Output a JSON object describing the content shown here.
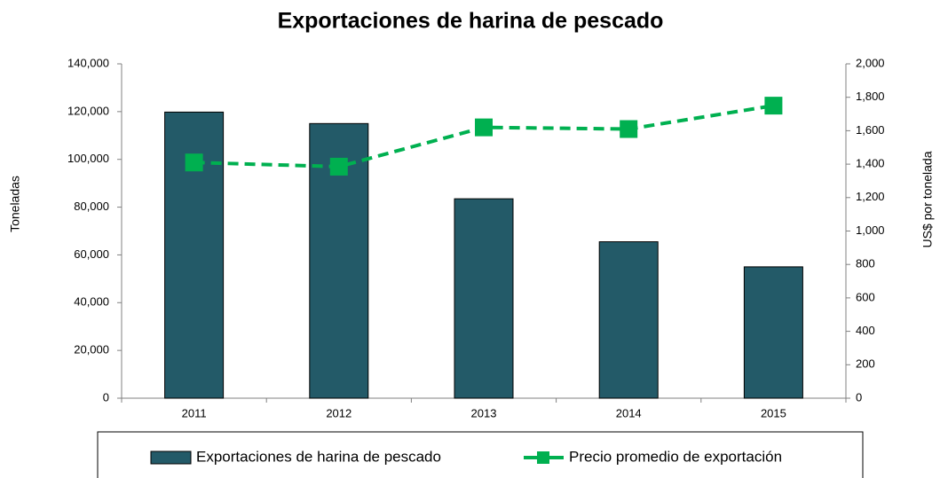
{
  "chart_data": {
    "type": "bar",
    "title": "Exportaciones de harina de pescado",
    "y_label": "Toneladas",
    "y2_label": "US$ por tonelada",
    "categories": [
      "2011",
      "2012",
      "2013",
      "2014",
      "2015"
    ],
    "series": [
      {
        "name": "Exportaciones de harina de pescado",
        "type": "bar",
        "color": "#235a68",
        "values": [
          119800,
          115000,
          83500,
          65500,
          55000
        ]
      },
      {
        "name": "Precio promedio de exportación",
        "type": "line",
        "axis": "y2",
        "color": "#00b050",
        "values": [
          1410,
          1385,
          1620,
          1610,
          1750
        ]
      }
    ],
    "ylim": [
      0,
      140000
    ],
    "yticks": [
      0,
      {
        "value": 20000,
        "label": "20,000"
      },
      {
        "value": 40000,
        "label": "40,000"
      },
      {
        "value": 60000,
        "label": "60,000"
      },
      {
        "value": 80000,
        "label": "80,000"
      },
      {
        "value": 100000,
        "label": "100,000"
      },
      {
        "value": 120000,
        "label": "120,000"
      },
      {
        "value": 140000,
        "label": "140,000"
      }
    ],
    "y2lim": [
      0,
      2000
    ],
    "y2ticks": [
      0,
      200,
      400,
      600,
      800,
      {
        "value": 1000,
        "label": "1,000"
      },
      {
        "value": 1200,
        "label": "1,200"
      },
      {
        "value": 1400,
        "label": "1,400"
      },
      {
        "value": 1600,
        "label": "1,600"
      },
      {
        "value": 1800,
        "label": "1,800"
      },
      {
        "value": 2000,
        "label": "2,000"
      }
    ],
    "grid": false,
    "legend": "bottom"
  }
}
